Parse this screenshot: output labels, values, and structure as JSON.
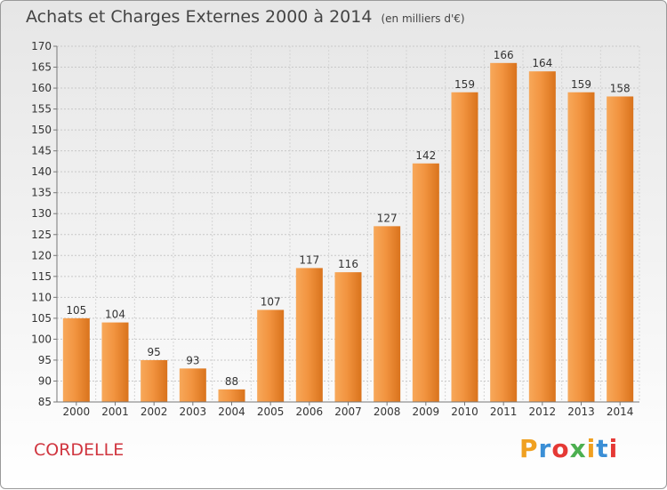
{
  "title": "Achats et Charges Externes 2000 à 2014",
  "unit": "(en milliers d'€)",
  "commune": "CORDELLE",
  "logo": {
    "letters": [
      "P",
      "r",
      "o",
      "x",
      "i",
      "t",
      "i"
    ],
    "colors": [
      "#f0a020",
      "#3b8fd6",
      "#e53935",
      "#4caf50",
      "#f0a020",
      "#3b8fd6",
      "#e53935"
    ]
  },
  "chart_data": {
    "type": "bar",
    "title": "Achats et Charges Externes 2000 à 2014",
    "subtitle": "(en milliers d'€)",
    "categories": [
      "2000",
      "2001",
      "2002",
      "2003",
      "2004",
      "2005",
      "2006",
      "2007",
      "2008",
      "2009",
      "2010",
      "2011",
      "2012",
      "2013",
      "2014"
    ],
    "values": [
      105,
      104,
      95,
      93,
      88,
      107,
      117,
      116,
      127,
      142,
      159,
      166,
      164,
      159,
      158
    ],
    "ylim": [
      85,
      170
    ],
    "yticks": [
      85,
      90,
      95,
      100,
      105,
      110,
      115,
      120,
      125,
      130,
      135,
      140,
      145,
      150,
      155,
      160,
      165,
      170
    ],
    "grid": true,
    "bar_color": "#f0903a"
  }
}
